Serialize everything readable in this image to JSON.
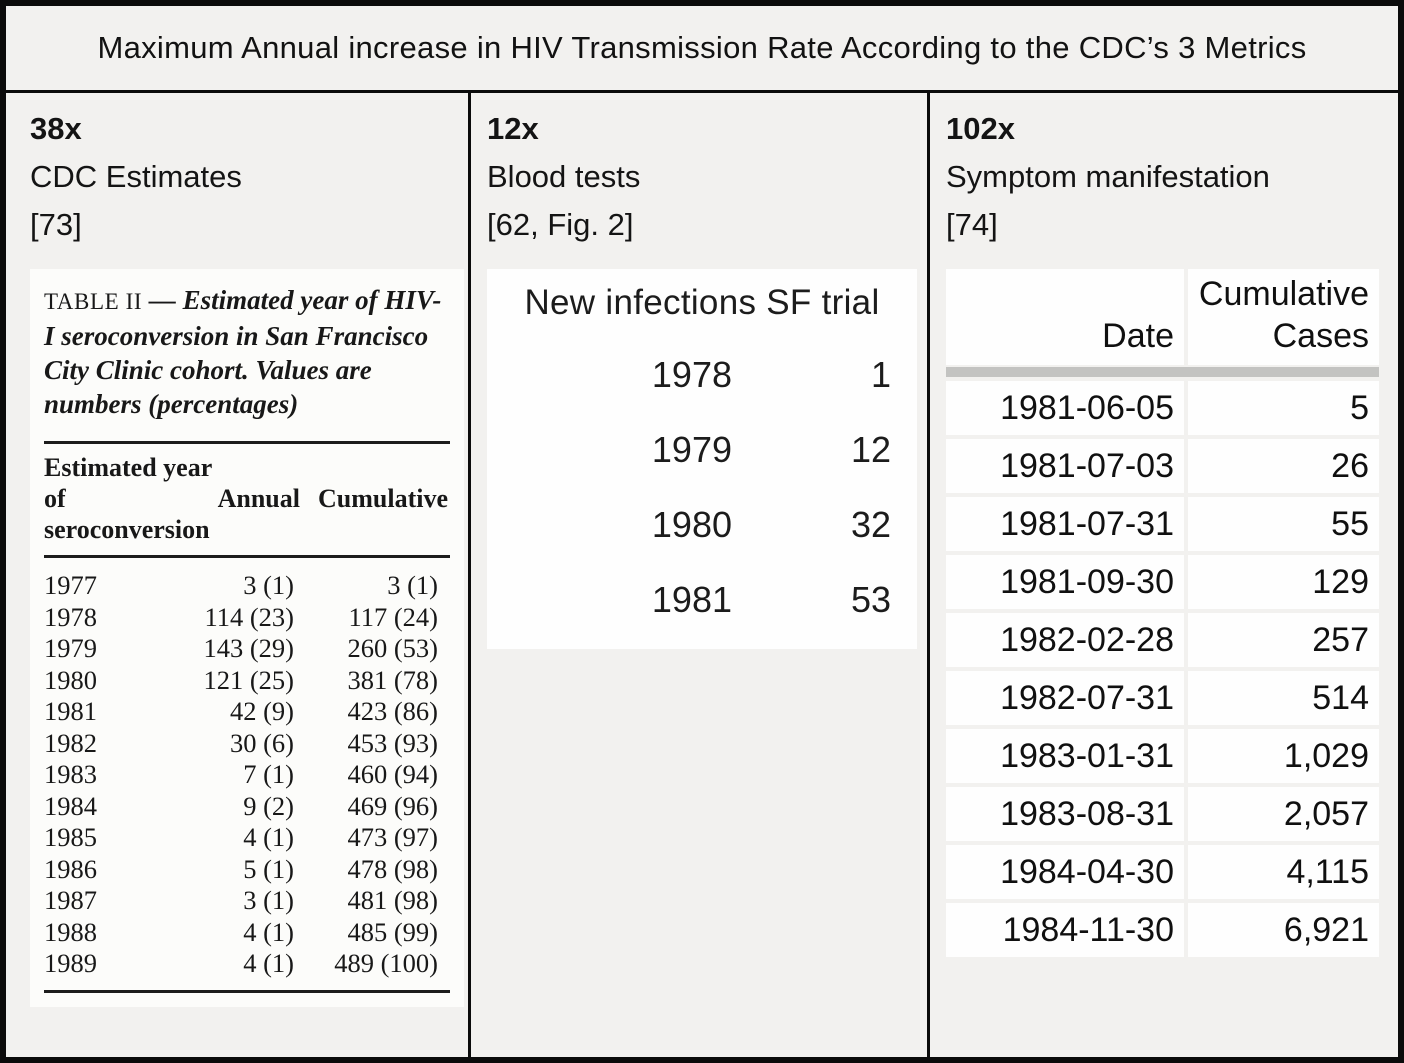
{
  "title": "Maximum Annual increase in HIV Transmission Rate According to the CDC’s 3 Metrics",
  "panels": {
    "cdc_estimates": {
      "multiplier": "38x",
      "label": "CDC Estimates",
      "citation": "[73]",
      "table": {
        "caption_label": "TABLE II",
        "caption_dash": "—",
        "caption_text": "Estimated year of HIV-I seroconversion in San Francisco City Clinic cohort. Values are numbers (percentages)",
        "header": {
          "col1": "Estimated year of seroconversion",
          "col2": "Annual",
          "col3": "Cumulative"
        },
        "rows": [
          {
            "year": "1977",
            "annual": "3 (1)",
            "cumulative": "3 (1)"
          },
          {
            "year": "1978",
            "annual": "114 (23)",
            "cumulative": "117 (24)"
          },
          {
            "year": "1979",
            "annual": "143 (29)",
            "cumulative": "260 (53)"
          },
          {
            "year": "1980",
            "annual": "121 (25)",
            "cumulative": "381 (78)"
          },
          {
            "year": "1981",
            "annual": "42 (9)",
            "cumulative": "423 (86)"
          },
          {
            "year": "1982",
            "annual": "30 (6)",
            "cumulative": "453 (93)"
          },
          {
            "year": "1983",
            "annual": "7 (1)",
            "cumulative": "460 (94)"
          },
          {
            "year": "1984",
            "annual": "9 (2)",
            "cumulative": "469 (96)"
          },
          {
            "year": "1985",
            "annual": "4 (1)",
            "cumulative": "473 (97)"
          },
          {
            "year": "1986",
            "annual": "5 (1)",
            "cumulative": "478 (98)"
          },
          {
            "year": "1987",
            "annual": "3 (1)",
            "cumulative": "481 (98)"
          },
          {
            "year": "1988",
            "annual": "4 (1)",
            "cumulative": "485 (99)"
          },
          {
            "year": "1989",
            "annual": "4 (1)",
            "cumulative": "489 (100)"
          }
        ]
      }
    },
    "blood_tests": {
      "multiplier": "12x",
      "label": "Blood tests",
      "citation": "[62, Fig. 2]",
      "table": {
        "title": "New infections SF trial",
        "rows": [
          {
            "year": "1978",
            "value": "1"
          },
          {
            "year": "1979",
            "value": "12"
          },
          {
            "year": "1980",
            "value": "32"
          },
          {
            "year": "1981",
            "value": "53"
          }
        ]
      }
    },
    "symptom_manifestation": {
      "multiplier": "102x",
      "label": "Symptom manifestation",
      "citation": "[74]",
      "table": {
        "header": {
          "col1": "Date",
          "col2": "Cumulative Cases"
        },
        "rows": [
          {
            "date": "1981-06-05",
            "cases": "5"
          },
          {
            "date": "1981-07-03",
            "cases": "26"
          },
          {
            "date": "1981-07-31",
            "cases": "55"
          },
          {
            "date": "1981-09-30",
            "cases": "129"
          },
          {
            "date": "1982-02-28",
            "cases": "257"
          },
          {
            "date": "1982-07-31",
            "cases": "514"
          },
          {
            "date": "1983-01-31",
            "cases": "1,029"
          },
          {
            "date": "1983-08-31",
            "cases": "2,057"
          },
          {
            "date": "1984-04-30",
            "cases": "4,115"
          },
          {
            "date": "1984-11-30",
            "cases": "6,921"
          }
        ]
      }
    }
  },
  "colors": {
    "border": "#0b0b0b",
    "background": "#f2f1ef",
    "scan_paper": "#fcfcfa",
    "table_cell": "#fefefe",
    "header_separator_bar": "#c3c3c1"
  }
}
